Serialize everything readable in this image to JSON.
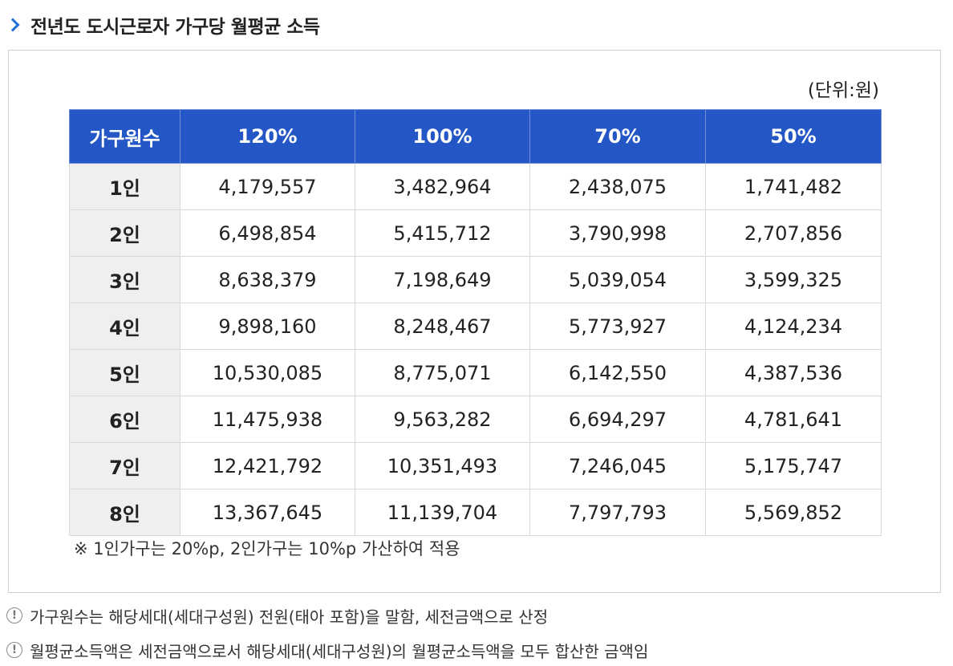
{
  "title": "전년도 도시근로자 가구당 월평균 소득",
  "unit": "(단위:원)",
  "table": {
    "headers": [
      "가구원수",
      "120%",
      "100%",
      "70%",
      "50%"
    ],
    "rows": [
      [
        "1인",
        "4,179,557",
        "3,482,964",
        "2,438,075",
        "1,741,482"
      ],
      [
        "2인",
        "6,498,854",
        "5,415,712",
        "3,790,998",
        "2,707,856"
      ],
      [
        "3인",
        "8,638,379",
        "7,198,649",
        "5,039,054",
        "3,599,325"
      ],
      [
        "4인",
        "9,898,160",
        "8,248,467",
        "5,773,927",
        "4,124,234"
      ],
      [
        "5인",
        "10,530,085",
        "8,775,071",
        "6,142,550",
        "4,387,536"
      ],
      [
        "6인",
        "11,475,938",
        "9,563,282",
        "6,694,297",
        "4,781,641"
      ],
      [
        "7인",
        "12,421,792",
        "10,351,493",
        "7,246,045",
        "5,175,747"
      ],
      [
        "8인",
        "13,367,645",
        "11,139,704",
        "7,797,793",
        "5,569,852"
      ]
    ]
  },
  "note": "※ 1인가구는 20%p, 2인가구는 10%p 가산하여 적용",
  "info_icon": "!",
  "info": [
    "가구원수는 해당세대(세대구성원) 전원(태아 포함)을 말함, 세전금액으로 산정",
    "월평균소득액은 세전금액으로서 해당세대(세대구성원)의 월평균소득액을 모두 합산한 금액임"
  ],
  "colors": {
    "header_bg": "#2457c5",
    "row_head_bg": "#efefef",
    "accent": "#1e6fd9"
  }
}
